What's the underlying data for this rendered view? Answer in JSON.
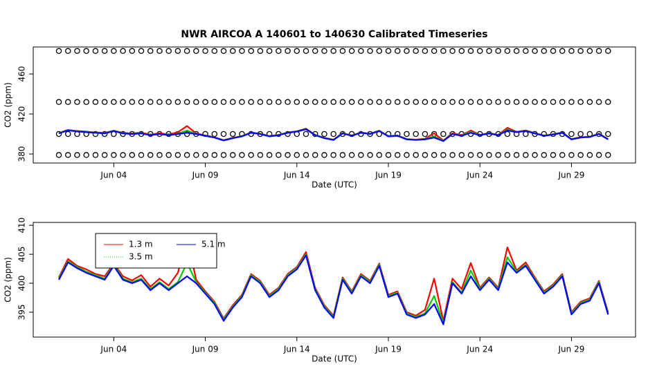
{
  "chart_data": [
    {
      "type": "line",
      "title": "NWR   AIRCOA  A   140601  to  140630   Calibrated Timeseries",
      "x_label": "Date (UTC)",
      "y_label": "CO2 (ppm)",
      "x": [
        1,
        1.5,
        2,
        2.5,
        3,
        3.5,
        4,
        4.5,
        5,
        5.5,
        6,
        6.5,
        7,
        7.5,
        8,
        8.5,
        9,
        9.5,
        10,
        10.5,
        11,
        11.5,
        12,
        12.5,
        13,
        13.5,
        14,
        14.5,
        15,
        15.5,
        16,
        16.5,
        17,
        17.5,
        18,
        18.5,
        19,
        19.5,
        20,
        20.5,
        21,
        21.5,
        22,
        22.5,
        23,
        23.5,
        24,
        24.5,
        25,
        25.5,
        26,
        26.5,
        27,
        27.5,
        28,
        28.5,
        29,
        29.5,
        30,
        30.5,
        31
      ],
      "xlim": [
        -0.4,
        32.5
      ],
      "xticks": [
        {
          "value": 4,
          "label": "Jun 04"
        },
        {
          "value": 9,
          "label": "Jun 09"
        },
        {
          "value": 14,
          "label": "Jun 14"
        },
        {
          "value": 19,
          "label": "Jun 19"
        },
        {
          "value": 24,
          "label": "Jun 24"
        },
        {
          "value": 29,
          "label": "Jun 29"
        }
      ],
      "ylim": [
        371,
        487
      ],
      "yticks": [
        380,
        420,
        460
      ],
      "series": [
        {
          "mode": "markers",
          "color": "#000000",
          "values": [
            483,
            483,
            483,
            483,
            483,
            483,
            483,
            483,
            483,
            483,
            483,
            483,
            483,
            483,
            483,
            483,
            483,
            483,
            483,
            483,
            483,
            483,
            483,
            483,
            483,
            483,
            483,
            483,
            483,
            483,
            483,
            483,
            483,
            483,
            483,
            483,
            483,
            483,
            483,
            483,
            483,
            483,
            483,
            483,
            483,
            483,
            483,
            483,
            483,
            483,
            483,
            483,
            483,
            483,
            483,
            483,
            483,
            483,
            483,
            483,
            483
          ]
        },
        {
          "mode": "markers",
          "color": "#000000",
          "values": [
            432,
            432,
            432,
            432,
            432,
            432,
            432,
            432,
            432,
            432,
            432,
            432,
            432,
            432,
            432,
            432,
            432,
            432,
            432,
            432,
            432,
            432,
            432,
            432,
            432,
            432,
            432,
            432,
            432,
            432,
            432,
            432,
            432,
            432,
            432,
            432,
            432,
            432,
            432,
            432,
            432,
            432,
            432,
            432,
            432,
            432,
            432,
            432,
            432,
            432,
            432,
            432,
            432,
            432,
            432,
            432,
            432,
            432,
            432,
            432,
            432
          ]
        },
        {
          "mode": "markers",
          "color": "#000000",
          "values": [
            400,
            400,
            400,
            400,
            400,
            400,
            400,
            400,
            400,
            400,
            400,
            400,
            400,
            400,
            400,
            400,
            400,
            400,
            400,
            400,
            400,
            400,
            400,
            400,
            400,
            400,
            400,
            400,
            400,
            400,
            400,
            400,
            400,
            400,
            400,
            400,
            400,
            400,
            400,
            400,
            400,
            400,
            400,
            400,
            400,
            400,
            400,
            400,
            400,
            400,
            400,
            400,
            400,
            400,
            400,
            400,
            400,
            400,
            400,
            400,
            400
          ]
        },
        {
          "mode": "markers",
          "color": "#000000",
          "values": [
            379,
            379,
            379,
            379,
            379,
            379,
            379,
            379,
            379,
            379,
            379,
            379,
            379,
            379,
            379,
            379,
            379,
            379,
            379,
            379,
            379,
            379,
            379,
            379,
            379,
            379,
            379,
            379,
            379,
            379,
            379,
            379,
            379,
            379,
            379,
            379,
            379,
            379,
            379,
            379,
            379,
            379,
            379,
            379,
            379,
            379,
            379,
            379,
            379,
            379,
            379,
            379,
            379,
            379,
            379,
            379,
            379,
            379,
            379,
            379,
            379
          ]
        },
        {
          "mode": "lines",
          "color": "#ff0000",
          "values": [
            401,
            404.2,
            403,
            402.4,
            401.6,
            401.2,
            403.4,
            401.2,
            400.5,
            401.4,
            399.4,
            400.8,
            399.6,
            401.8,
            408,
            400.6,
            398.6,
            396.8,
            393.9,
            396.2,
            398,
            401.6,
            400.4,
            398,
            399.2,
            401.6,
            402.8,
            405.4,
            399.2,
            396.2,
            394.4,
            401,
            398.6,
            401.6,
            400.4,
            403.4,
            398,
            398.6,
            395,
            394.4,
            395.4,
            400.8,
            393.5,
            400.8,
            399,
            403.5,
            399.2,
            401,
            399.2,
            406.2,
            402.2,
            403.6,
            401,
            398.6,
            399.8,
            401.6,
            395,
            396.8,
            397.4,
            400.4,
            395
          ]
        },
        {
          "mode": "lines",
          "color": "#00cc00",
          "values": [
            400.8,
            403.8,
            402.8,
            402,
            401.4,
            400.8,
            403.2,
            400.8,
            400.2,
            400.8,
            399,
            400.2,
            399,
            400.2,
            403.5,
            400.2,
            398.4,
            396.6,
            393.7,
            396,
            397.8,
            401.4,
            400.2,
            397.8,
            399,
            401.4,
            402.6,
            405,
            399,
            396,
            394.2,
            400.8,
            398.4,
            401.4,
            400.2,
            403.2,
            397.8,
            398.4,
            394.8,
            394.2,
            394.8,
            397.8,
            393.1,
            400.2,
            398.4,
            402.2,
            399,
            400.8,
            399,
            404.5,
            402,
            403.2,
            400.8,
            398.4,
            399.6,
            401.4,
            394.8,
            396.6,
            397.2,
            400.2,
            394.8
          ]
        },
        {
          "mode": "lines",
          "color": "#0000ff",
          "values": [
            400.6,
            403.6,
            402.6,
            401.8,
            401.2,
            400.6,
            403,
            400.6,
            400,
            400.6,
            398.8,
            400,
            398.8,
            400,
            401.2,
            400,
            398.2,
            396.4,
            393.5,
            395.8,
            397.6,
            401.2,
            400,
            397.6,
            398.8,
            401.2,
            402.4,
            404.8,
            398.8,
            395.8,
            394,
            400.6,
            398.2,
            401.2,
            400,
            403,
            397.6,
            398.2,
            394.6,
            394,
            394.6,
            396.4,
            392.9,
            400,
            398.2,
            401.2,
            398.8,
            400.6,
            398.8,
            403.6,
            401.8,
            403,
            400.6,
            398.2,
            399.4,
            401.2,
            394.6,
            396.4,
            397,
            400,
            394.6
          ]
        }
      ]
    },
    {
      "type": "line",
      "x_label": "Date (UTC)",
      "y_label": "CO2 (ppm)",
      "legend": "top-left",
      "x": [
        1,
        1.5,
        2,
        2.5,
        3,
        3.5,
        4,
        4.5,
        5,
        5.5,
        6,
        6.5,
        7,
        7.5,
        8,
        8.5,
        9,
        9.5,
        10,
        10.5,
        11,
        11.5,
        12,
        12.5,
        13,
        13.5,
        14,
        14.5,
        15,
        15.5,
        16,
        16.5,
        17,
        17.5,
        18,
        18.5,
        19,
        19.5,
        20,
        20.5,
        21,
        21.5,
        22,
        22.5,
        23,
        23.5,
        24,
        24.5,
        25,
        25.5,
        26,
        26.5,
        27,
        27.5,
        28,
        28.5,
        29,
        29.5,
        30,
        30.5,
        31
      ],
      "xlim": [
        -0.4,
        32.5
      ],
      "xticks": [
        {
          "value": 4,
          "label": "Jun 04"
        },
        {
          "value": 9,
          "label": "Jun 09"
        },
        {
          "value": 14,
          "label": "Jun 14"
        },
        {
          "value": 19,
          "label": "Jun 19"
        },
        {
          "value": 24,
          "label": "Jun 24"
        },
        {
          "value": 29,
          "label": "Jun 29"
        }
      ],
      "ylim": [
        390.7,
        410.5
      ],
      "yticks": [
        395,
        400,
        405,
        410
      ],
      "series": [
        {
          "name": "1.3 m",
          "mode": "lines",
          "color": "#ff0000",
          "values": [
            401,
            404.2,
            403,
            402.4,
            401.6,
            401.2,
            403.4,
            401.2,
            400.5,
            401.4,
            399.4,
            400.8,
            399.6,
            401.8,
            408,
            400.6,
            398.6,
            396.8,
            393.9,
            396.2,
            398,
            401.6,
            400.4,
            398,
            399.2,
            401.6,
            402.8,
            405.4,
            399.2,
            396.2,
            394.4,
            401,
            398.6,
            401.6,
            400.4,
            403.4,
            398,
            398.6,
            395,
            394.4,
            395.4,
            400.8,
            393.5,
            400.8,
            399,
            403.5,
            399.2,
            401,
            399.2,
            406.2,
            402.2,
            403.6,
            401,
            398.6,
            399.8,
            401.6,
            395,
            396.8,
            397.4,
            400.4,
            395
          ]
        },
        {
          "name": "3.5 m",
          "mode": "lines",
          "color": "#00cc00",
          "values": [
            400.8,
            403.8,
            402.8,
            402,
            401.4,
            400.8,
            403.2,
            400.8,
            400.2,
            400.8,
            399,
            400.2,
            399,
            400.2,
            403.5,
            400.2,
            398.4,
            396.6,
            393.7,
            396,
            397.8,
            401.4,
            400.2,
            397.8,
            399,
            401.4,
            402.6,
            405,
            399,
            396,
            394.2,
            400.8,
            398.4,
            401.4,
            400.2,
            403.2,
            397.8,
            398.4,
            394.8,
            394.2,
            394.8,
            397.8,
            393.1,
            400.2,
            398.4,
            402.2,
            399,
            400.8,
            399,
            404.5,
            402,
            403.2,
            400.8,
            398.4,
            399.6,
            401.4,
            394.8,
            396.6,
            397.2,
            400.2,
            394.8
          ]
        },
        {
          "name": "5.1 m",
          "mode": "lines",
          "color": "#0000ff",
          "values": [
            400.6,
            403.6,
            402.6,
            401.8,
            401.2,
            400.6,
            403,
            400.6,
            400,
            400.6,
            398.8,
            400,
            398.8,
            400,
            401.2,
            400,
            398.2,
            396.4,
            393.5,
            395.8,
            397.6,
            401.2,
            400,
            397.6,
            398.8,
            401.2,
            402.4,
            404.8,
            398.8,
            395.8,
            394,
            400.6,
            398.2,
            401.2,
            400,
            403,
            397.6,
            398.2,
            394.6,
            394,
            394.6,
            396.4,
            392.9,
            400,
            398.2,
            401.2,
            398.8,
            400.6,
            398.8,
            403.6,
            401.8,
            403,
            400.6,
            398.2,
            399.4,
            401.2,
            394.6,
            396.4,
            397,
            400,
            394.6
          ]
        }
      ]
    }
  ]
}
